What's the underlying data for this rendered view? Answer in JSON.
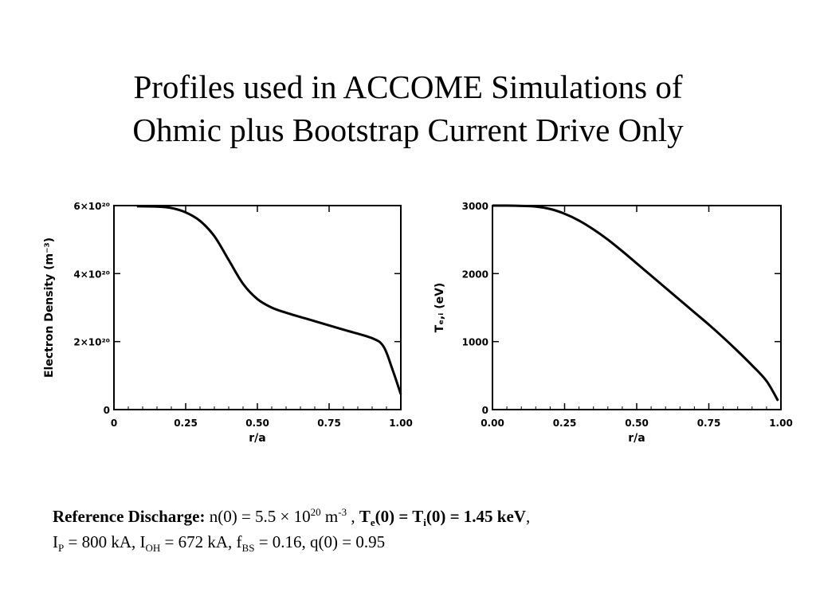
{
  "slide": {
    "title_line1": "Profiles used in ACCOME Simulations of",
    "title_line2": "Ohmic plus Bootstrap Current Drive Only"
  },
  "chart_data": [
    {
      "type": "line",
      "xlabel": "r/a",
      "ylabel": "Electron Density (m⁻³)",
      "xlim": [
        0,
        1.0
      ],
      "ylim": [
        0,
        6e+20
      ],
      "xticks": [
        "0",
        "0.25",
        "0.50",
        "0.75",
        "1.00"
      ],
      "yticks": [
        "0",
        "2×10²⁰",
        "4×10²⁰",
        "6×10²⁰"
      ],
      "grid": false,
      "series": [
        {
          "x": [
            0.08,
            0.15,
            0.2,
            0.25,
            0.3,
            0.35,
            0.4,
            0.45,
            0.5,
            0.55,
            0.6,
            0.7,
            0.8,
            0.9,
            0.94,
            0.97,
            1.0
          ],
          "y": [
            5.98e+20,
            5.97e+20,
            5.93e+20,
            5.8e+20,
            5.55e+20,
            5.1e+20,
            4.4e+20,
            3.7e+20,
            3.25e+20,
            3e+20,
            2.85e+20,
            2.6e+20,
            2.35e+20,
            2.1e+20,
            1.85e+20,
            1.2e+20,
            4.5e+19
          ]
        }
      ]
    },
    {
      "type": "line",
      "xlabel": "r/a",
      "ylabel": "Tₑ,ᵢ (eV)",
      "xlim": [
        0,
        1.0
      ],
      "ylim": [
        0,
        3000
      ],
      "xticks": [
        "0.00",
        "0.25",
        "0.50",
        "0.75",
        "1.00"
      ],
      "yticks": [
        "0",
        "1000",
        "2000",
        "3000"
      ],
      "grid": false,
      "series": [
        {
          "x": [
            0.0,
            0.05,
            0.1,
            0.15,
            0.2,
            0.25,
            0.3,
            0.35,
            0.4,
            0.45,
            0.5,
            0.55,
            0.6,
            0.65,
            0.7,
            0.75,
            0.8,
            0.85,
            0.9,
            0.95,
            0.99
          ],
          "y": [
            3000,
            3000,
            2995,
            2985,
            2950,
            2880,
            2780,
            2650,
            2500,
            2330,
            2150,
            1970,
            1790,
            1610,
            1430,
            1250,
            1060,
            860,
            650,
            420,
            130
          ]
        }
      ]
    }
  ],
  "caption": {
    "line1": {
      "ref_label": "Reference Discharge:",
      "density_text": " n(0) = 5.5 × 10",
      "density_exp": "20",
      "density_unit": " m",
      "density_unit_exp": "-3",
      "sep": " , ",
      "te_T": "T",
      "te_sub": "e",
      "te_mid": "(0) = T",
      "ti_sub": "i",
      "te_end": "(0) = 1.45 keV",
      "trail": ","
    },
    "line2": {
      "ip_I": "I",
      "ip_sub": "P",
      "ip_text": " = 800 kA, I",
      "ioh_sub": "OH",
      "ioh_text": " = 672 kA, f",
      "fbs_sub": "BS",
      "fbs_text": " = 0.16,  q(0) = 0.95"
    }
  }
}
